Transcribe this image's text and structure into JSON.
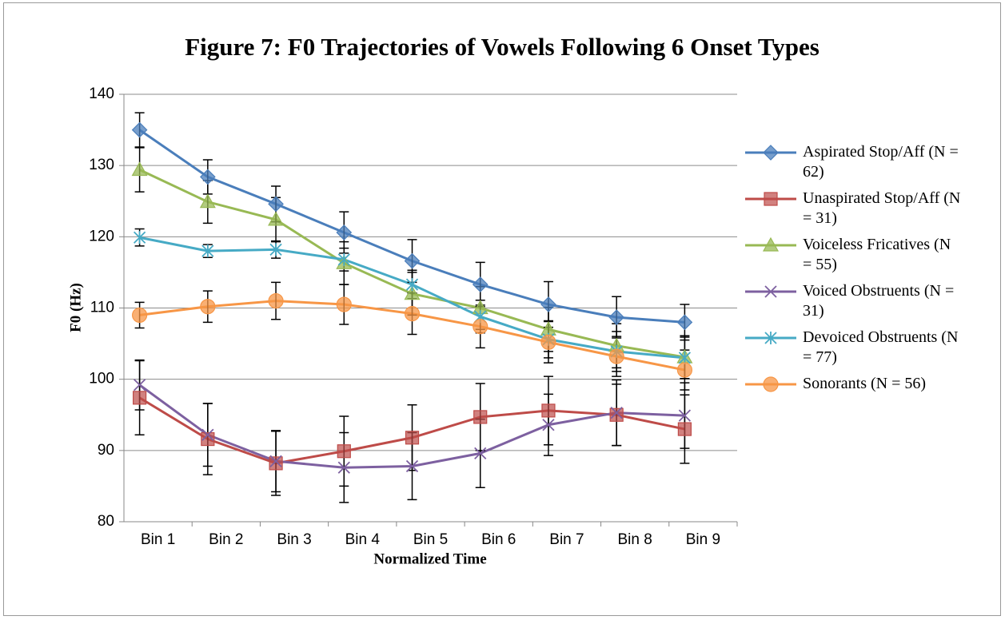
{
  "chart_data": {
    "type": "line",
    "title": "Figure 7: F0 Trajectories of Vowels Following 6 Onset Types",
    "x_label": "Normalized Time",
    "y_label": "F0 (Hz)",
    "categories": [
      "Bin 1",
      "Bin 2",
      "Bin 3",
      "Bin 4",
      "Bin 5",
      "Bin 6",
      "Bin 7",
      "Bin 8",
      "Bin 9"
    ],
    "ylim": [
      80,
      140
    ],
    "yticks": [
      80,
      90,
      100,
      110,
      120,
      130,
      140
    ],
    "grid": true,
    "legend": "right",
    "series": [
      {
        "name": "Aspirated Stop/Aff (N = 62)",
        "color": "#4a7ebb",
        "marker": "diamond",
        "values": [
          135,
          128.4,
          124.6,
          120.6,
          116.6,
          113.3,
          110.5,
          108.7,
          108.0
        ],
        "errors": [
          2.4,
          2.4,
          2.5,
          2.9,
          3.0,
          3.1,
          3.2,
          2.9,
          2.5
        ]
      },
      {
        "name": "Unaspirated Stop/Aff (N = 31)",
        "color": "#be4b48",
        "marker": "square",
        "values": [
          97.4,
          91.6,
          88.2,
          89.9,
          91.8,
          94.7,
          95.6,
          95.0,
          93.0
        ],
        "errors": [
          5.2,
          5.0,
          4.5,
          4.9,
          4.6,
          4.7,
          4.8,
          4.3,
          4.8
        ]
      },
      {
        "name": "Voiceless Fricatives (N = 55)",
        "color": "#98b954",
        "marker": "triangle",
        "values": [
          129.4,
          124.9,
          122.4,
          116.3,
          112.0,
          110.0,
          107.0,
          104.7,
          103.1
        ],
        "errors": [
          3.1,
          3.0,
          3.1,
          3.0,
          3.0,
          3.0,
          3.1,
          3.1,
          3.0
        ]
      },
      {
        "name": "Voiced Obstruents (N = 31)",
        "color": "#7d60a0",
        "marker": "x",
        "values": [
          99.2,
          92.2,
          88.5,
          87.6,
          87.8,
          89.6,
          93.6,
          95.3,
          94.9
        ],
        "errors": [
          3.5,
          4.4,
          4.3,
          4.9,
          4.7,
          4.8,
          4.3,
          4.6,
          4.6
        ]
      },
      {
        "name": "Devoiced Obstruents (N = 77)",
        "color": "#46aac5",
        "marker": "asterisk",
        "values": [
          119.9,
          118.0,
          118.2,
          116.8,
          113.3,
          108.8,
          105.6,
          103.9,
          103.0
        ],
        "errors": [
          1.2,
          0.9,
          1.2,
          1.6,
          2.0,
          2.3,
          2.6,
          2.8,
          2.9
        ]
      },
      {
        "name": "Sonorants (N = 56)",
        "color": "#f79646",
        "marker": "circle",
        "values": [
          109.0,
          110.2,
          111.0,
          110.5,
          109.2,
          107.4,
          105.2,
          103.2,
          101.3
        ],
        "errors": [
          1.8,
          2.2,
          2.6,
          2.8,
          2.9,
          3.0,
          2.9,
          2.8,
          2.8
        ]
      }
    ]
  }
}
